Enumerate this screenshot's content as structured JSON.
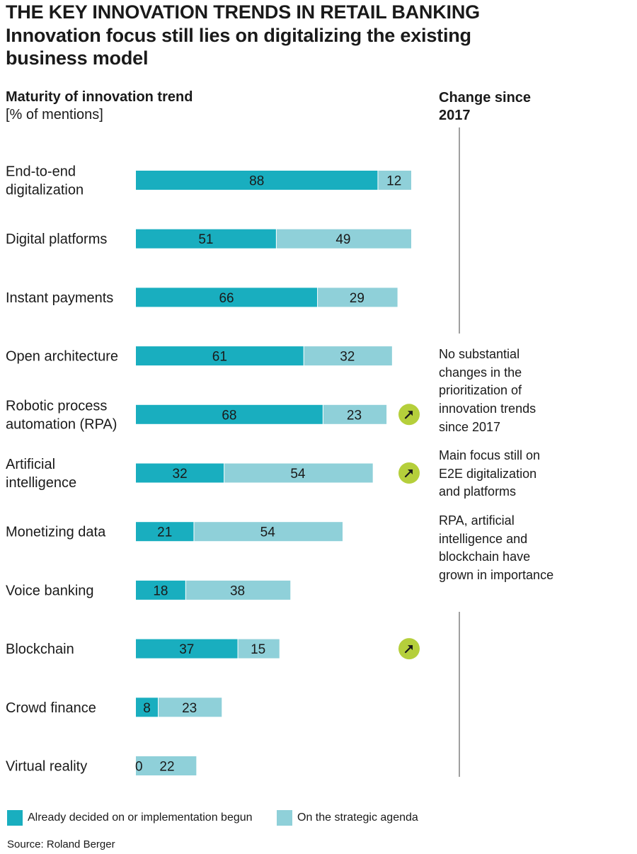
{
  "title": "THE KEY INNOVATION TRENDS IN RETAIL BANKING",
  "subtitle": "Innovation focus still lies on digitalizing the existing business model",
  "left_heading": "Maturity of innovation trend",
  "left_unit": "[% of mentions]",
  "right_heading": "Change since 2017",
  "notes": [
    "No substantial changes in the prioritization of innovation trends since 2017",
    "Main focus still on E2E digitalization and platforms",
    "RPA, artificial intelligence and blockchain have grown in importance"
  ],
  "legend": [
    {
      "label": "Already decided on or implementation begun",
      "color": "#19aebf"
    },
    {
      "label": "On the strategic agenda",
      "color": "#8fd0d9"
    }
  ],
  "source": "Source: Roland Berger",
  "colors": {
    "decided": "#19aebf",
    "agenda": "#8fd0d9",
    "arrow_badge": "#b5cf3b"
  },
  "chart_data": {
    "type": "bar",
    "orientation": "horizontal",
    "stacked": true,
    "categories": [
      "End-to-end digitalization",
      "Digital platforms",
      "Instant payments",
      "Open architecture",
      "Robotic process automation (RPA)",
      "Artificial intelligence",
      "Monetizing data",
      "Voice banking",
      "Blockchain",
      "Crowd finance",
      "Virtual reality"
    ],
    "series": [
      {
        "name": "Already decided on or implementation begun",
        "values": [
          88,
          51,
          66,
          61,
          68,
          32,
          21,
          18,
          37,
          8,
          0
        ]
      },
      {
        "name": "On the strategic agenda",
        "values": [
          12,
          49,
          29,
          32,
          23,
          54,
          54,
          38,
          15,
          23,
          22
        ]
      }
    ],
    "change_since_2017": [
      "none",
      "none",
      "none",
      "none",
      "up",
      "up",
      "none",
      "none",
      "up",
      "none",
      "none"
    ],
    "xlim": [
      0,
      100
    ],
    "grid": false,
    "legend_position": "bottom"
  }
}
